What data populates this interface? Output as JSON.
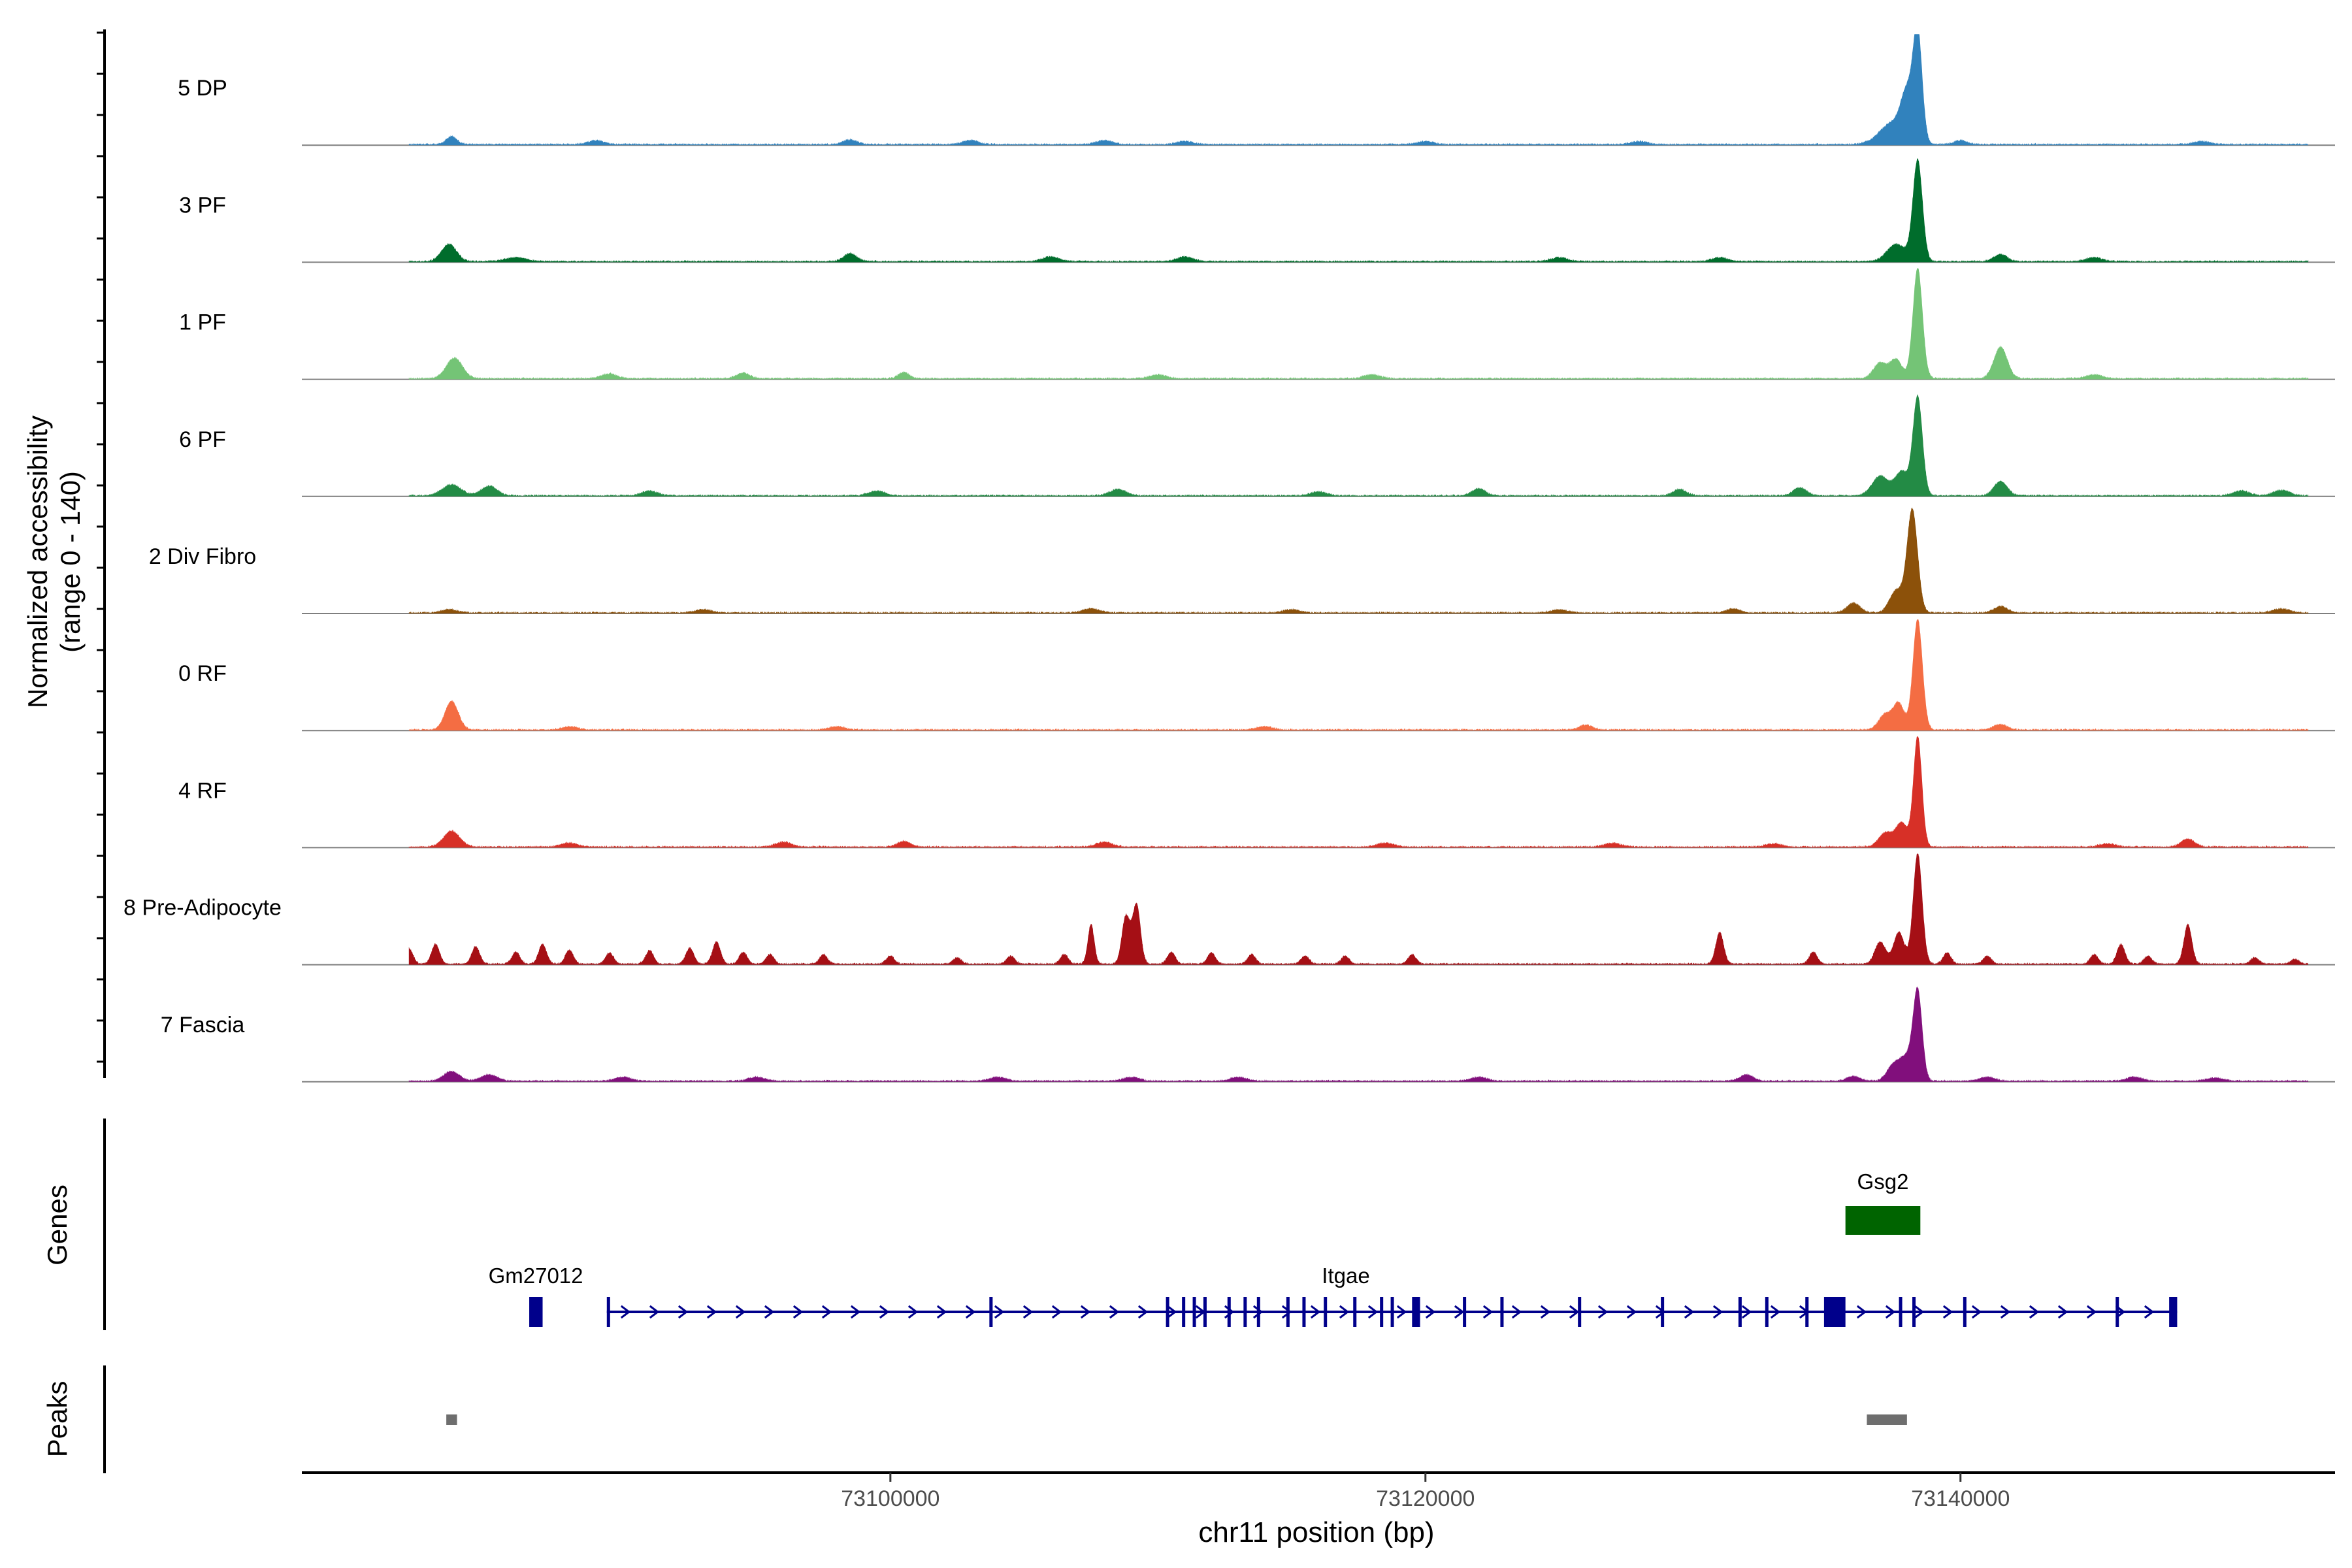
{
  "chart_data": {
    "type": "area",
    "title": "",
    "ylabel_line1": "Normalized accessibility",
    "ylabel_line2": "(range 0 - 140)",
    "ylim": [
      0,
      140
    ],
    "xlabel": "chr11 position (bp)",
    "xlim": [
      73078000,
      73154000
    ],
    "x_ticks": [
      {
        "value": 73100000,
        "label": "73100000"
      },
      {
        "value": 73120000,
        "label": "73120000"
      },
      {
        "value": 73140000,
        "label": "73140000"
      }
    ],
    "tracks": [
      {
        "name": "5 DP",
        "color": "#3182bd",
        "peaks": [
          [
            73083600,
            10,
            200
          ],
          [
            73089000,
            5,
            300
          ],
          [
            73098500,
            6,
            250
          ],
          [
            73103000,
            5,
            300
          ],
          [
            73108000,
            5,
            300
          ],
          [
            73111000,
            4,
            300
          ],
          [
            73120000,
            4,
            300
          ],
          [
            73128000,
            4,
            300
          ],
          [
            73137500,
            28,
            500
          ],
          [
            73138000,
            52,
            220
          ],
          [
            73138400,
            138,
            170
          ],
          [
            73140000,
            5,
            250
          ],
          [
            73149000,
            4,
            300
          ]
        ]
      },
      {
        "name": "3 PF",
        "color": "#006d2c",
        "peaks": [
          [
            73083500,
            22,
            280
          ],
          [
            73086000,
            5,
            400
          ],
          [
            73098500,
            10,
            250
          ],
          [
            73106000,
            6,
            300
          ],
          [
            73111000,
            6,
            300
          ],
          [
            73125000,
            5,
            300
          ],
          [
            73131000,
            5,
            300
          ],
          [
            73137600,
            22,
            350
          ],
          [
            73138400,
            128,
            180
          ],
          [
            73141500,
            9,
            250
          ],
          [
            73145000,
            5,
            300
          ]
        ]
      },
      {
        "name": "1 PF",
        "color": "#74c476",
        "peaks": [
          [
            73083700,
            26,
            300
          ],
          [
            73089500,
            6,
            300
          ],
          [
            73094500,
            7,
            250
          ],
          [
            73100500,
            8,
            200
          ],
          [
            73110000,
            5,
            300
          ],
          [
            73118000,
            5,
            300
          ],
          [
            73137000,
            20,
            250
          ],
          [
            73137600,
            24,
            220
          ],
          [
            73138400,
            140,
            180
          ],
          [
            73141500,
            40,
            250
          ],
          [
            73145000,
            5,
            300
          ]
        ]
      },
      {
        "name": "6 PF",
        "color": "#238b45",
        "peaks": [
          [
            73083600,
            14,
            350
          ],
          [
            73085000,
            12,
            300
          ],
          [
            73091000,
            6,
            300
          ],
          [
            73099500,
            6,
            300
          ],
          [
            73108500,
            8,
            300
          ],
          [
            73116000,
            5,
            300
          ],
          [
            73122000,
            9,
            250
          ],
          [
            73129500,
            8,
            250
          ],
          [
            73134000,
            10,
            250
          ],
          [
            73137000,
            25,
            300
          ],
          [
            73137800,
            30,
            250
          ],
          [
            73138400,
            125,
            180
          ],
          [
            73141500,
            18,
            250
          ],
          [
            73150500,
            6,
            300
          ],
          [
            73152000,
            7,
            300
          ]
        ]
      },
      {
        "name": "2 Div Fibro",
        "color": "#8c510a",
        "peaks": [
          [
            73083500,
            4,
            300
          ],
          [
            73093000,
            4,
            300
          ],
          [
            73107500,
            5,
            300
          ],
          [
            73115000,
            4,
            300
          ],
          [
            73125000,
            4,
            300
          ],
          [
            73131500,
            5,
            250
          ],
          [
            73136000,
            12,
            250
          ],
          [
            73137600,
            28,
            250
          ],
          [
            73138200,
            130,
            200
          ],
          [
            73141500,
            8,
            250
          ],
          [
            73152000,
            5,
            300
          ]
        ]
      },
      {
        "name": "0 RF",
        "color": "#f46d43",
        "peaks": [
          [
            73083600,
            36,
            250
          ],
          [
            73088000,
            4,
            300
          ],
          [
            73098000,
            4,
            300
          ],
          [
            73114000,
            4,
            300
          ],
          [
            73126000,
            6,
            250
          ],
          [
            73137200,
            20,
            250
          ],
          [
            73137700,
            32,
            200
          ],
          [
            73138400,
            140,
            180
          ],
          [
            73141500,
            7,
            250
          ]
        ]
      },
      {
        "name": "4 RF",
        "color": "#d73027",
        "peaks": [
          [
            73083600,
            20,
            300
          ],
          [
            73088000,
            5,
            300
          ],
          [
            73096000,
            6,
            300
          ],
          [
            73100500,
            7,
            250
          ],
          [
            73108000,
            6,
            300
          ],
          [
            73118500,
            5,
            300
          ],
          [
            73127000,
            5,
            300
          ],
          [
            73133000,
            4,
            300
          ],
          [
            73137200,
            18,
            250
          ],
          [
            73137800,
            30,
            220
          ],
          [
            73138400,
            140,
            160
          ],
          [
            73145500,
            4,
            300
          ],
          [
            73148500,
            10,
            250
          ]
        ]
      },
      {
        "name": "8 Pre-Adipocyte",
        "color": "#a50f15",
        "peaks": [
          [
            73082000,
            20,
            150
          ],
          [
            73083000,
            25,
            150
          ],
          [
            73084500,
            22,
            150
          ],
          [
            73086000,
            15,
            150
          ],
          [
            73087000,
            25,
            150
          ],
          [
            73088000,
            18,
            150
          ],
          [
            73089500,
            14,
            150
          ],
          [
            73091000,
            17,
            150
          ],
          [
            73092500,
            20,
            150
          ],
          [
            73093500,
            28,
            150
          ],
          [
            73094500,
            15,
            150
          ],
          [
            73095500,
            12,
            150
          ],
          [
            73097500,
            12,
            150
          ],
          [
            73100000,
            10,
            150
          ],
          [
            73102500,
            8,
            150
          ],
          [
            73104500,
            10,
            150
          ],
          [
            73106500,
            12,
            150
          ],
          [
            73107500,
            50,
            120
          ],
          [
            73108800,
            60,
            150
          ],
          [
            73109200,
            75,
            150
          ],
          [
            73110500,
            15,
            150
          ],
          [
            73112000,
            14,
            150
          ],
          [
            73113500,
            12,
            150
          ],
          [
            73115500,
            10,
            150
          ],
          [
            73117000,
            10,
            150
          ],
          [
            73119500,
            12,
            150
          ],
          [
            73131000,
            40,
            150
          ],
          [
            73134500,
            15,
            150
          ],
          [
            73137000,
            28,
            200
          ],
          [
            73137700,
            40,
            200
          ],
          [
            73138400,
            140,
            170
          ],
          [
            73139500,
            14,
            150
          ],
          [
            73141000,
            10,
            150
          ],
          [
            73145000,
            12,
            150
          ],
          [
            73146000,
            25,
            150
          ],
          [
            73147000,
            10,
            150
          ],
          [
            73148500,
            50,
            150
          ],
          [
            73151000,
            8,
            150
          ],
          [
            73152500,
            6,
            150
          ]
        ]
      },
      {
        "name": "7 Fascia",
        "color": "#810f7c",
        "peaks": [
          [
            73083600,
            12,
            300
          ],
          [
            73085000,
            8,
            300
          ],
          [
            73090000,
            5,
            300
          ],
          [
            73095000,
            5,
            300
          ],
          [
            73104000,
            5,
            300
          ],
          [
            73109000,
            5,
            300
          ],
          [
            73113000,
            5,
            300
          ],
          [
            73122000,
            5,
            300
          ],
          [
            73132000,
            8,
            250
          ],
          [
            73136000,
            6,
            250
          ],
          [
            73137500,
            20,
            250
          ],
          [
            73138000,
            28,
            250
          ],
          [
            73138400,
            110,
            170
          ],
          [
            73141000,
            5,
            300
          ],
          [
            73146500,
            5,
            300
          ],
          [
            73149500,
            4,
            300
          ]
        ]
      }
    ],
    "genes": [
      {
        "name": "Gsg2",
        "start": 73135700,
        "end": 73138500,
        "strand": "+",
        "color": "#006400",
        "row": 1,
        "exons": [
          [
            73135700,
            73138500
          ]
        ]
      },
      {
        "name": "Gm27012",
        "start": 73086500,
        "end": 73087000,
        "strand": "+",
        "color": "#00008b",
        "row": 2,
        "exons": [
          [
            73086500,
            73087000
          ]
        ]
      },
      {
        "name": "Itgae",
        "start": 73089400,
        "end": 73148100,
        "strand": "+",
        "color": "#00008b",
        "row": 2,
        "exons": [
          [
            73089400,
            73089500
          ],
          [
            73103700,
            73103800
          ],
          [
            73110300,
            73110400
          ],
          [
            73110900,
            73111000
          ],
          [
            73111300,
            73111400
          ],
          [
            73111700,
            73111800
          ],
          [
            73112600,
            73112700
          ],
          [
            73113200,
            73113300
          ],
          [
            73113700,
            73113800
          ],
          [
            73114800,
            73114900
          ],
          [
            73115400,
            73115500
          ],
          [
            73116200,
            73116300
          ],
          [
            73117300,
            73117400
          ],
          [
            73118300,
            73118400
          ],
          [
            73118700,
            73118800
          ],
          [
            73119500,
            73119800
          ],
          [
            73121400,
            73121500
          ],
          [
            73122800,
            73122900
          ],
          [
            73125700,
            73125800
          ],
          [
            73128800,
            73128900
          ],
          [
            73131700,
            73131800
          ],
          [
            73132700,
            73132800
          ],
          [
            73134200,
            73134300
          ],
          [
            73134900,
            73135700
          ],
          [
            73137700,
            73137800
          ],
          [
            73138200,
            73138300
          ],
          [
            73140100,
            73140200
          ],
          [
            73145800,
            73145900
          ],
          [
            73147800,
            73148100
          ]
        ]
      }
    ],
    "peaks_track": [
      {
        "start": 73083400,
        "end": 73083800
      },
      {
        "start": 73136500,
        "end": 73138000
      }
    ],
    "labels": {
      "genes": "Genes",
      "peaks": "Peaks"
    }
  }
}
